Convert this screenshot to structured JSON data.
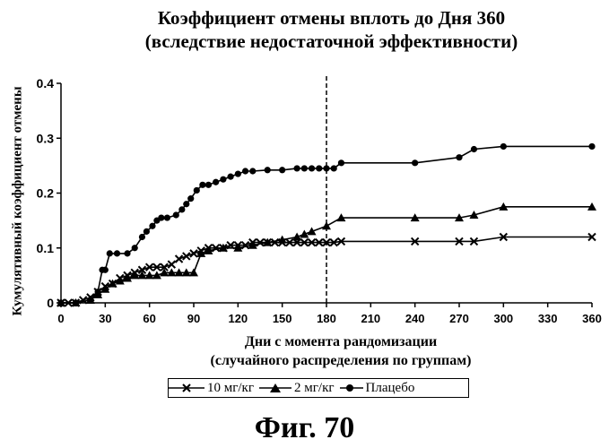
{
  "chart_data": {
    "type": "line",
    "title": "Коэффициент отмены вплоть до Дня 360",
    "subtitle": "(вследствие недостаточной эффективности)",
    "xlabel": "Дни с момента рандомизации",
    "xlabel2": "(случайного распределения по группам)",
    "ylabel": "Кумулятивный коэффициент отмены",
    "xlim": [
      0,
      360
    ],
    "ylim": [
      0,
      0.4
    ],
    "xticks": [
      0,
      30,
      60,
      90,
      120,
      150,
      180,
      210,
      240,
      270,
      300,
      330,
      360
    ],
    "yticks": [
      "0",
      "0.1",
      "0.2",
      "0.3",
      "0.4"
    ],
    "vline_x": 180,
    "grid": false,
    "legend_position": "bottom",
    "series": [
      {
        "name": "10 мг/кг",
        "marker": "x",
        "x": [
          0,
          5,
          10,
          15,
          20,
          25,
          30,
          35,
          40,
          45,
          50,
          55,
          60,
          65,
          70,
          75,
          80,
          85,
          90,
          95,
          100,
          105,
          110,
          115,
          120,
          125,
          130,
          135,
          140,
          145,
          150,
          155,
          160,
          165,
          170,
          175,
          180,
          185,
          190,
          240,
          270,
          280,
          300,
          360
        ],
        "y": [
          0,
          0,
          0,
          0.005,
          0.01,
          0.02,
          0.03,
          0.035,
          0.045,
          0.05,
          0.055,
          0.06,
          0.065,
          0.065,
          0.065,
          0.07,
          0.08,
          0.085,
          0.09,
          0.095,
          0.1,
          0.1,
          0.1,
          0.105,
          0.105,
          0.105,
          0.11,
          0.11,
          0.11,
          0.11,
          0.11,
          0.11,
          0.11,
          0.11,
          0.11,
          0.11,
          0.11,
          0.11,
          0.112,
          0.112,
          0.112,
          0.112,
          0.12,
          0.12
        ]
      },
      {
        "name": "2 мг/кг",
        "marker": "triangle",
        "x": [
          0,
          10,
          20,
          25,
          30,
          35,
          40,
          45,
          50,
          55,
          60,
          65,
          70,
          75,
          80,
          85,
          90,
          95,
          100,
          110,
          120,
          130,
          140,
          150,
          160,
          165,
          170,
          180,
          190,
          240,
          270,
          280,
          300,
          360
        ],
        "y": [
          0,
          0,
          0.005,
          0.015,
          0.025,
          0.035,
          0.04,
          0.045,
          0.05,
          0.05,
          0.05,
          0.05,
          0.055,
          0.055,
          0.055,
          0.055,
          0.055,
          0.09,
          0.095,
          0.1,
          0.1,
          0.105,
          0.11,
          0.115,
          0.12,
          0.125,
          0.13,
          0.14,
          0.155,
          0.155,
          0.155,
          0.16,
          0.175,
          0.175
        ]
      },
      {
        "name": "Плацебо",
        "marker": "circle",
        "x": [
          0,
          10,
          20,
          25,
          28,
          30,
          33,
          38,
          45,
          50,
          55,
          58,
          62,
          65,
          68,
          72,
          78,
          82,
          85,
          88,
          92,
          96,
          100,
          105,
          110,
          115,
          120,
          125,
          130,
          140,
          150,
          160,
          165,
          170,
          175,
          180,
          185,
          190,
          240,
          270,
          280,
          300,
          360
        ],
        "y": [
          0,
          0,
          0.005,
          0.02,
          0.06,
          0.06,
          0.09,
          0.09,
          0.09,
          0.1,
          0.12,
          0.13,
          0.14,
          0.15,
          0.155,
          0.155,
          0.16,
          0.17,
          0.18,
          0.19,
          0.205,
          0.215,
          0.215,
          0.22,
          0.225,
          0.23,
          0.235,
          0.24,
          0.24,
          0.242,
          0.242,
          0.245,
          0.245,
          0.245,
          0.245,
          0.245,
          0.245,
          0.255,
          0.255,
          0.265,
          0.28,
          0.285,
          0.285
        ]
      }
    ]
  },
  "figure_label": "Фиг. 70"
}
